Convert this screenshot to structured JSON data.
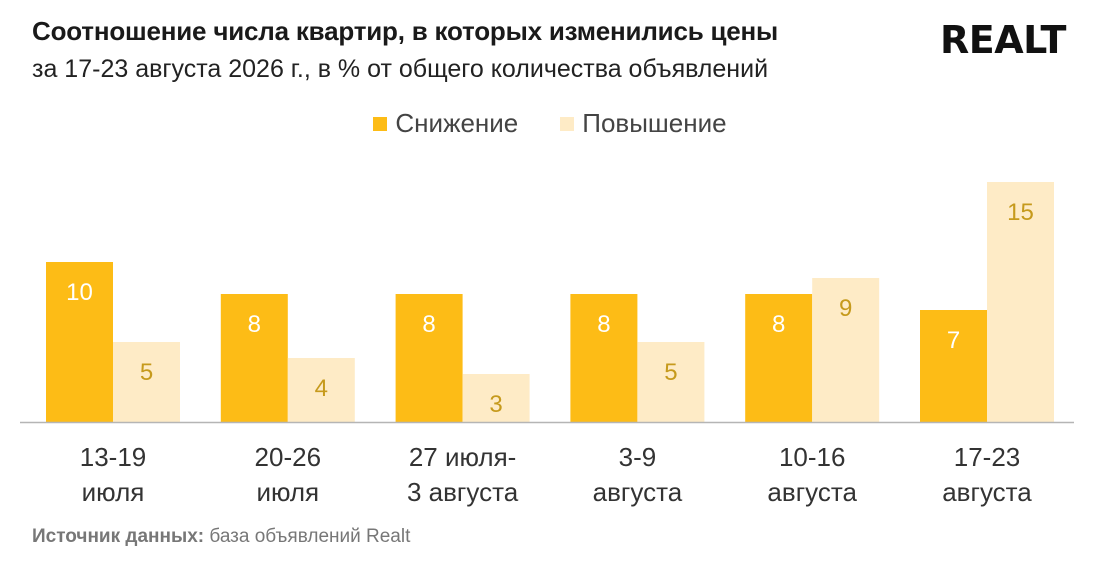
{
  "header": {
    "title": "Соотношение числа квартир, в которых изменились цены",
    "subtitle": "за 17-23 августа 2026 г., в % от общего количества объявлений",
    "logo_text": "REALT"
  },
  "footer": {
    "source_label": "Источник данных:",
    "source_text": "база объявлений Realt"
  },
  "colors": {
    "decrease": "#FDBC16",
    "increase": "#FEEBC6",
    "label_on_dark": "#ffffff",
    "label_on_light": "#C69A1C",
    "axis": "#b5b5b5",
    "tick_text": "#333333"
  },
  "chart_data": {
    "type": "bar",
    "categories": [
      [
        "13-19",
        "июля"
      ],
      [
        "20-26",
        "июля"
      ],
      [
        "27 июля-",
        "3 августа"
      ],
      [
        "3-9",
        "августа"
      ],
      [
        "10-16",
        "августа"
      ],
      [
        "17-23",
        "августа"
      ]
    ],
    "series": [
      {
        "name": "Снижение",
        "values": [
          10,
          8,
          8,
          8,
          8,
          7
        ]
      },
      {
        "name": "Повышение",
        "values": [
          5,
          4,
          3,
          5,
          9,
          15
        ]
      }
    ],
    "ylim": [
      0,
      15
    ],
    "grid": false,
    "legend_position": "top-center"
  }
}
